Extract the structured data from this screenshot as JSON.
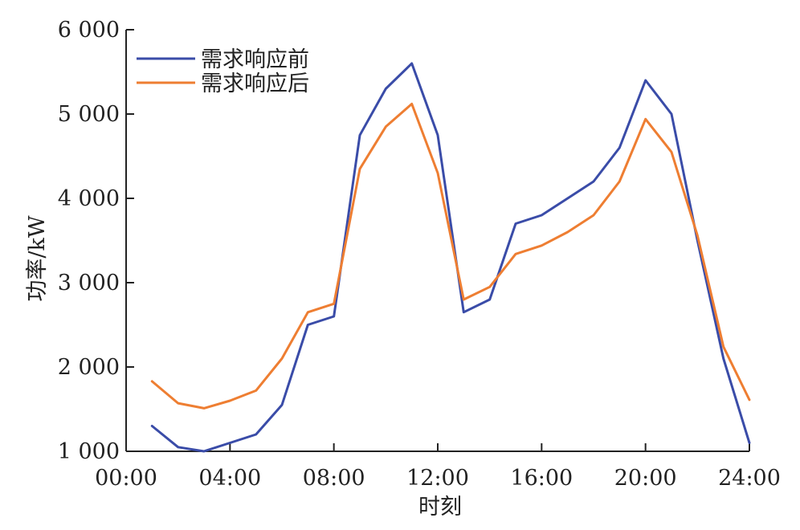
{
  "chart_data": {
    "type": "line",
    "xlabel": "时刻",
    "ylabel": "功率/kW",
    "xlim": [
      0,
      24
    ],
    "ylim": [
      1000,
      6000
    ],
    "x_ticks": [
      {
        "value": 0,
        "label": "00:00"
      },
      {
        "value": 4,
        "label": "04:00"
      },
      {
        "value": 8,
        "label": "08:00"
      },
      {
        "value": 12,
        "label": "12:00"
      },
      {
        "value": 16,
        "label": "16:00"
      },
      {
        "value": 20,
        "label": "20:00"
      },
      {
        "value": 24,
        "label": "24:00"
      }
    ],
    "y_ticks": [
      {
        "value": 1000,
        "label": "1 000"
      },
      {
        "value": 2000,
        "label": "2 000"
      },
      {
        "value": 3000,
        "label": "3 000"
      },
      {
        "value": 4000,
        "label": "4 000"
      },
      {
        "value": 5000,
        "label": "5 000"
      },
      {
        "value": 6000,
        "label": "6 000"
      }
    ],
    "grid": false,
    "legend_position": "top-left",
    "x": [
      1,
      2,
      3,
      4,
      5,
      6,
      7,
      8,
      9,
      10,
      11,
      12,
      13,
      14,
      15,
      16,
      17,
      18,
      19,
      20,
      21,
      22,
      23,
      24
    ],
    "series": [
      {
        "name": "需求响应前",
        "color": "#3a4ca8",
        "values": [
          1300,
          1050,
          1000,
          1100,
          1200,
          1550,
          2500,
          2600,
          4750,
          5300,
          5600,
          4750,
          2650,
          2800,
          3700,
          3800,
          4000,
          4200,
          4600,
          5400,
          5000,
          3500,
          2100,
          1100
        ]
      },
      {
        "name": "需求响应后",
        "color": "#ee7e32",
        "values": [
          1830,
          1570,
          1510,
          1600,
          1720,
          2100,
          2650,
          2750,
          4350,
          4850,
          5120,
          4300,
          2800,
          2950,
          3340,
          3440,
          3600,
          3800,
          4200,
          4940,
          4550,
          3560,
          2240,
          1610
        ]
      }
    ]
  }
}
